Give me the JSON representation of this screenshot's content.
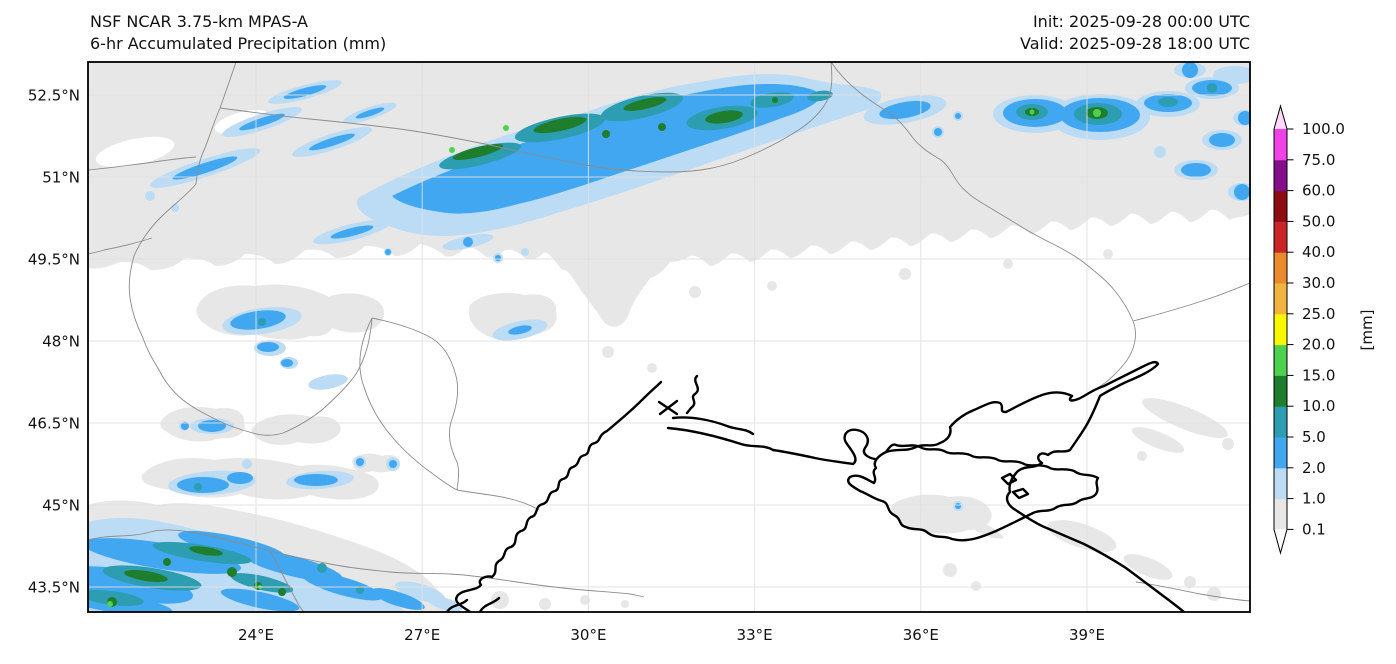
{
  "header": {
    "title_line1": "NSF NCAR 3.75-km MPAS-A",
    "title_line2": "6-hr Accumulated Precipitation (mm)",
    "init_label": "Init: 2025-09-28 00:00 UTC",
    "valid_label": "Valid: 2025-09-28 18:00 UTC"
  },
  "axes": {
    "lat_ticks": [
      {
        "label": "52.5°N",
        "value": 52.5
      },
      {
        "label": "51°N",
        "value": 51
      },
      {
        "label": "49.5°N",
        "value": 49.5
      },
      {
        "label": "48°N",
        "value": 48
      },
      {
        "label": "46.5°N",
        "value": 46.5
      },
      {
        "label": "45°N",
        "value": 45
      },
      {
        "label": "43.5°N",
        "value": 43.5
      }
    ],
    "lon_ticks": [
      {
        "label": "24°E",
        "value": 24
      },
      {
        "label": "27°E",
        "value": 27
      },
      {
        "label": "30°E",
        "value": 30
      },
      {
        "label": "33°E",
        "value": 33
      },
      {
        "label": "36°E",
        "value": 36
      },
      {
        "label": "39°E",
        "value": 39
      }
    ]
  },
  "colorbar": {
    "unit": "[mm]",
    "tick_labels": [
      "0.1",
      "1.0",
      "2.0",
      "5.0",
      "10.0",
      "15.0",
      "20.0",
      "25.0",
      "30.0",
      "40.0",
      "50.0",
      "60.0",
      "75.0",
      "100.0"
    ],
    "segment_colors": [
      "#e7e7e7",
      "#bcdcf5",
      "#41a7f0",
      "#2d9db2",
      "#1f7e2d",
      "#4ed14f",
      "#f9f800",
      "#f1b43e",
      "#e98b2d",
      "#ca2427",
      "#8d0e12",
      "#850f8a",
      "#f042e8"
    ],
    "over_color": "#fbd9fa",
    "under_color": "#ffffff"
  },
  "colors": {
    "precip_01": "#e7e7e7",
    "precip_1": "#bcdcf5",
    "precip_2": "#41a7f0",
    "precip_5": "#2d9db2",
    "precip_10": "#1f7e2d",
    "precip_15": "#4ed14f",
    "border": "#8c8c8c",
    "gridline": "#e0e0e0",
    "coastline": "#000000"
  }
}
